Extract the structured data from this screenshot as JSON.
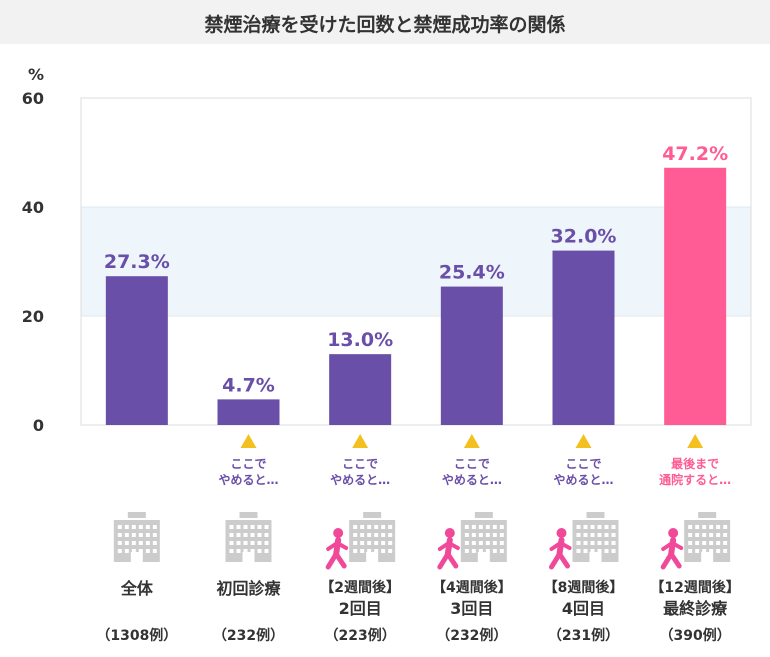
{
  "title": "禁煙治療を受けた回数と禁煙成功率の関係",
  "colors": {
    "bar": "#6a4fa8",
    "highlight": "#ff5c96",
    "band": "#eef5fb",
    "arrow": "#f4c020",
    "building": "#cccccc",
    "walker": "#f0499a"
  },
  "chart_data": {
    "type": "bar",
    "title": "禁煙治療を受けた回数と禁煙成功率の関係",
    "ylabel": "%",
    "ylim": [
      0,
      60
    ],
    "yticks": [
      "0",
      "20",
      "40",
      "60"
    ],
    "values": [
      27.3,
      4.7,
      13.0,
      25.4,
      32.0,
      47.2
    ],
    "value_labels": [
      "27.3%",
      "4.7%",
      "13.0%",
      "25.4%",
      "32.0%",
      "47.2%"
    ],
    "band": [
      20,
      40
    ],
    "grid": false,
    "categories": [
      {
        "line1": "",
        "line2": "全体",
        "n": "（1308例）",
        "walker": false,
        "highlight": false,
        "note": []
      },
      {
        "line1": "",
        "line2": "初回診療",
        "n": "（232例）",
        "walker": false,
        "highlight": false,
        "note": [
          "ここで",
          "やめると…"
        ]
      },
      {
        "line1": "【2週間後】",
        "line2": "2回目",
        "n": "（223例）",
        "walker": true,
        "highlight": false,
        "note": [
          "ここで",
          "やめると…"
        ]
      },
      {
        "line1": "【4週間後】",
        "line2": "3回目",
        "n": "（232例）",
        "walker": true,
        "highlight": false,
        "note": [
          "ここで",
          "やめると…"
        ]
      },
      {
        "line1": "【8週間後】",
        "line2": "4回目",
        "n": "（231例）",
        "walker": true,
        "highlight": false,
        "note": [
          "ここで",
          "やめると…"
        ]
      },
      {
        "line1": "【12週間後】",
        "line2": "最終診療",
        "n": "（390例）",
        "walker": true,
        "highlight": true,
        "note": [
          "最後まで",
          "通院すると…"
        ]
      }
    ]
  }
}
